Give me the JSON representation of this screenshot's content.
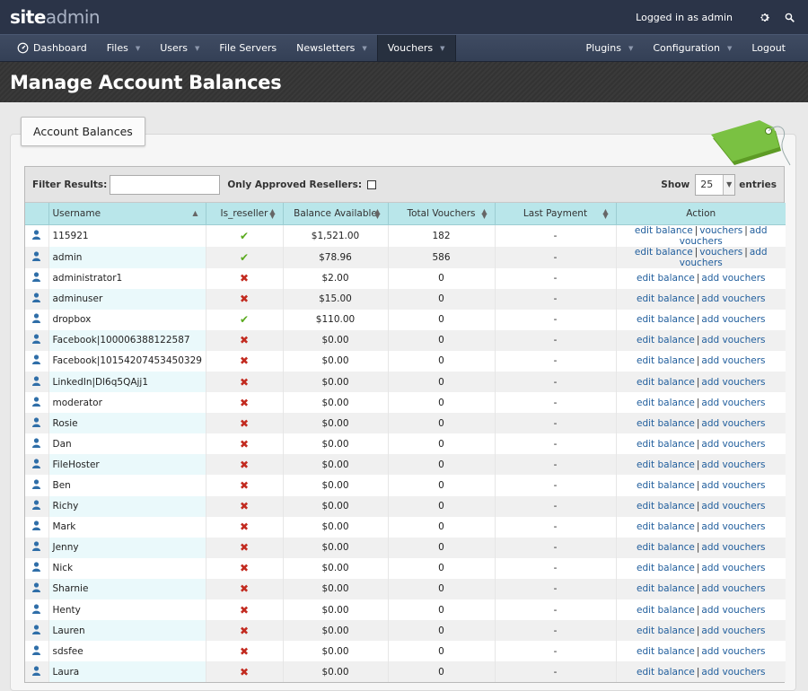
{
  "app": {
    "logo_part1": "site",
    "logo_part2": "admin",
    "logged_in_text": "Logged in as admin"
  },
  "nav": {
    "left": [
      {
        "label": "Dashboard",
        "icon": "dashboard-icon",
        "caret": false,
        "active": false
      },
      {
        "label": "Files",
        "caret": true,
        "active": false
      },
      {
        "label": "Users",
        "caret": true,
        "active": false
      },
      {
        "label": "File Servers",
        "caret": false,
        "active": false
      },
      {
        "label": "Newsletters",
        "caret": true,
        "active": false
      },
      {
        "label": "Vouchers",
        "caret": true,
        "active": true
      }
    ],
    "right": [
      {
        "label": "Plugins",
        "caret": true
      },
      {
        "label": "Configuration",
        "caret": true
      },
      {
        "label": "Logout",
        "caret": false
      }
    ]
  },
  "page": {
    "title": "Manage Account Balances",
    "panel_tab": "Account Balances"
  },
  "filter": {
    "label": "Filter Results:",
    "value": "",
    "approved_label": "Only Approved Resellers:",
    "approved_checked": false,
    "show_label": "Show",
    "show_value": "25",
    "entries_label": "entries"
  },
  "columns": [
    "Username",
    "Is_reseller",
    "Balance Available",
    "Total Vouchers",
    "Last Payment",
    "Action"
  ],
  "actions": {
    "edit": "edit balance",
    "vouchers": "vouchers",
    "add": "add vouchers"
  },
  "rows": [
    {
      "username": "115921",
      "reseller": true,
      "balance": "$1,521.00",
      "vouchers": "182",
      "last_payment": "-",
      "has_vouchers_link": true
    },
    {
      "username": "admin",
      "reseller": true,
      "balance": "$78.96",
      "vouchers": "586",
      "last_payment": "-",
      "has_vouchers_link": true
    },
    {
      "username": "administrator1",
      "reseller": false,
      "balance": "$2.00",
      "vouchers": "0",
      "last_payment": "-",
      "has_vouchers_link": false
    },
    {
      "username": "adminuser",
      "reseller": false,
      "balance": "$15.00",
      "vouchers": "0",
      "last_payment": "-",
      "has_vouchers_link": false
    },
    {
      "username": "dropbox",
      "reseller": true,
      "balance": "$110.00",
      "vouchers": "0",
      "last_payment": "-",
      "has_vouchers_link": false
    },
    {
      "username": "Facebook|100006388122587",
      "reseller": false,
      "balance": "$0.00",
      "vouchers": "0",
      "last_payment": "-",
      "has_vouchers_link": false
    },
    {
      "username": "Facebook|10154207453450329",
      "reseller": false,
      "balance": "$0.00",
      "vouchers": "0",
      "last_payment": "-",
      "has_vouchers_link": false
    },
    {
      "username": "LinkedIn|Dl6q5QAjj1",
      "reseller": false,
      "balance": "$0.00",
      "vouchers": "0",
      "last_payment": "-",
      "has_vouchers_link": false
    },
    {
      "username": "moderator",
      "reseller": false,
      "balance": "$0.00",
      "vouchers": "0",
      "last_payment": "-",
      "has_vouchers_link": false
    },
    {
      "username": "Rosie",
      "reseller": false,
      "balance": "$0.00",
      "vouchers": "0",
      "last_payment": "-",
      "has_vouchers_link": false
    },
    {
      "username": "Dan",
      "reseller": false,
      "balance": "$0.00",
      "vouchers": "0",
      "last_payment": "-",
      "has_vouchers_link": false
    },
    {
      "username": "FileHoster",
      "reseller": false,
      "balance": "$0.00",
      "vouchers": "0",
      "last_payment": "-",
      "has_vouchers_link": false
    },
    {
      "username": "Ben",
      "reseller": false,
      "balance": "$0.00",
      "vouchers": "0",
      "last_payment": "-",
      "has_vouchers_link": false
    },
    {
      "username": "Richy",
      "reseller": false,
      "balance": "$0.00",
      "vouchers": "0",
      "last_payment": "-",
      "has_vouchers_link": false
    },
    {
      "username": "Mark",
      "reseller": false,
      "balance": "$0.00",
      "vouchers": "0",
      "last_payment": "-",
      "has_vouchers_link": false
    },
    {
      "username": "Jenny",
      "reseller": false,
      "balance": "$0.00",
      "vouchers": "0",
      "last_payment": "-",
      "has_vouchers_link": false
    },
    {
      "username": "Nick",
      "reseller": false,
      "balance": "$0.00",
      "vouchers": "0",
      "last_payment": "-",
      "has_vouchers_link": false
    },
    {
      "username": "Sharnie",
      "reseller": false,
      "balance": "$0.00",
      "vouchers": "0",
      "last_payment": "-",
      "has_vouchers_link": false
    },
    {
      "username": "Henty",
      "reseller": false,
      "balance": "$0.00",
      "vouchers": "0",
      "last_payment": "-",
      "has_vouchers_link": false
    },
    {
      "username": "Lauren",
      "reseller": false,
      "balance": "$0.00",
      "vouchers": "0",
      "last_payment": "-",
      "has_vouchers_link": false
    },
    {
      "username": "sdsfee",
      "reseller": false,
      "balance": "$0.00",
      "vouchers": "0",
      "last_payment": "-",
      "has_vouchers_link": false
    },
    {
      "username": "Laura",
      "reseller": false,
      "balance": "$0.00",
      "vouchers": "0",
      "last_payment": "-",
      "has_vouchers_link": false
    }
  ],
  "colors": {
    "topbar": "#2b3448",
    "header_row": "#b9e6ea",
    "link": "#1f5d9c",
    "check": "#5aaa1e",
    "cross": "#c22a1f",
    "tag": "#7ac142"
  }
}
